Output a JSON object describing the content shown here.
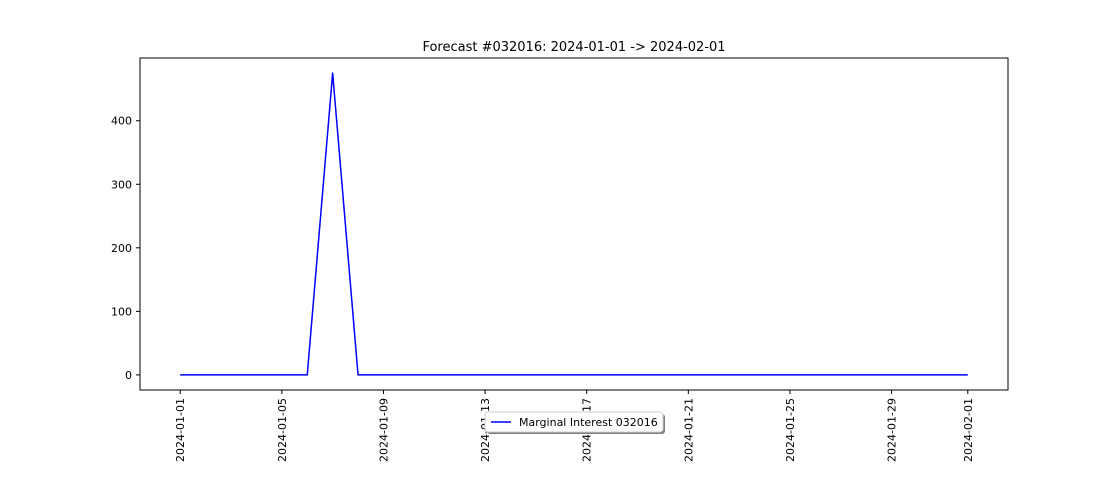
{
  "chart_data": {
    "type": "line",
    "title": "Forecast #032016: 2024-01-01 -> 2024-02-01",
    "xlabel": "",
    "ylabel": "",
    "x": [
      "2024-01-01",
      "2024-01-02",
      "2024-01-03",
      "2024-01-04",
      "2024-01-05",
      "2024-01-06",
      "2024-01-07",
      "2024-01-08",
      "2024-01-09",
      "2024-01-10",
      "2024-01-11",
      "2024-01-12",
      "2024-01-13",
      "2024-01-14",
      "2024-01-15",
      "2024-01-16",
      "2024-01-17",
      "2024-01-18",
      "2024-01-19",
      "2024-01-20",
      "2024-01-21",
      "2024-01-22",
      "2024-01-23",
      "2024-01-24",
      "2024-01-25",
      "2024-01-26",
      "2024-01-27",
      "2024-01-28",
      "2024-01-29",
      "2024-01-30",
      "2024-01-31",
      "2024-02-01"
    ],
    "series": [
      {
        "name": "Marginal Interest 032016",
        "color": "#0000ff",
        "values": [
          0,
          0,
          0,
          0,
          0,
          0,
          475,
          0,
          0,
          0,
          0,
          0,
          0,
          0,
          0,
          0,
          0,
          0,
          0,
          0,
          0,
          0,
          0,
          0,
          0,
          0,
          0,
          0,
          0,
          0,
          0,
          0
        ]
      }
    ],
    "xlim": [
      "2023-12-30T10:00",
      "2024-02-02T14:00"
    ],
    "ylim": [
      -23.75,
      498.75
    ],
    "xticks": [
      "2024-01-01",
      "2024-01-05",
      "2024-01-09",
      "2024-01-13",
      "2024-01-17",
      "2024-01-21",
      "2024-01-25",
      "2024-01-29",
      "2024-02-01"
    ],
    "yticks": [
      0,
      100,
      200,
      300,
      400
    ],
    "grid": false,
    "legend_position": "bottom-center"
  }
}
